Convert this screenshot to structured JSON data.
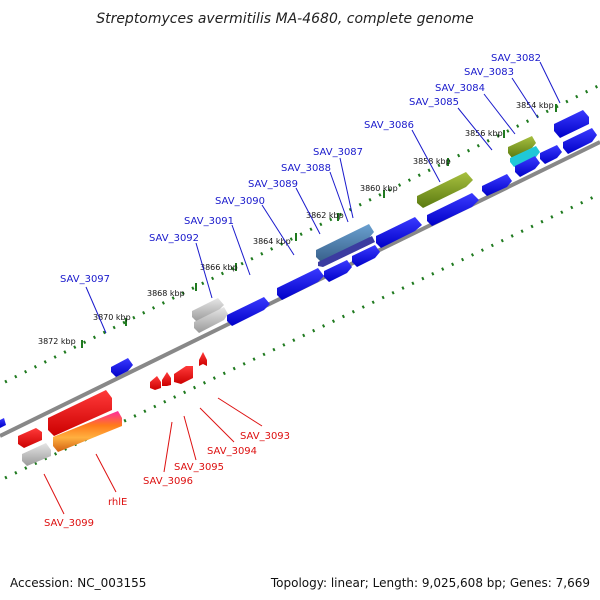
{
  "title": "Streptomyces avermitilis MA-4680, complete genome",
  "footer": {
    "accession": "Accession: NC_003155",
    "summary": "Topology: linear; Length: 9,025,608 bp; Genes: 7,669"
  },
  "ticks": [
    "3854 kbp",
    "3856 kbp",
    "3858 kbp",
    "3860 kbp",
    "3862 kbp",
    "3864 kbp",
    "3866 kbp",
    "3868 kbp",
    "3870 kbp",
    "3872 kbp"
  ],
  "top_labels": [
    "SAV_3082",
    "SAV_3083",
    "SAV_3084",
    "SAV_3085",
    "SAV_3086",
    "SAV_3087",
    "SAV_3088",
    "SAV_3089",
    "SAV_3090",
    "SAV_3091",
    "SAV_3092",
    "SAV_3097"
  ],
  "bottom_labels": [
    "SAV_3093",
    "SAV_3094",
    "SAV_3095",
    "SAV_3096",
    "rhlE",
    "SAV_3099"
  ],
  "colors": {
    "forward": "#0a0ae8",
    "reverse": "#ee1111",
    "backbone": "#888888",
    "ruler": "#1f7a1f",
    "olive": "#7a9a1a",
    "cyan": "#20c8d8",
    "steel": "#5080b0",
    "gray": "#b8b8b8"
  }
}
